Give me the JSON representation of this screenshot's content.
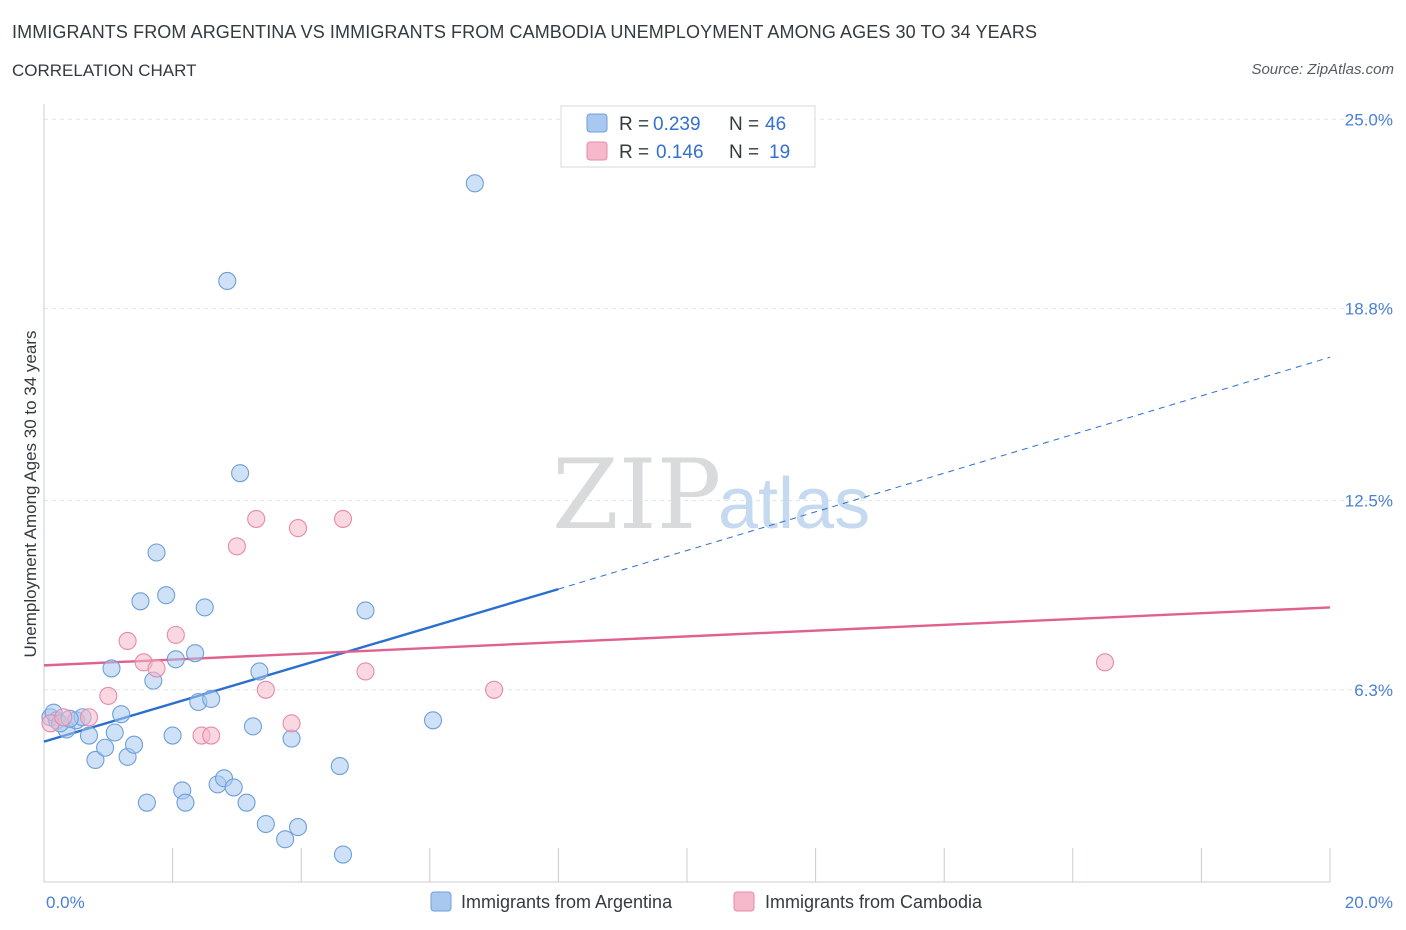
{
  "header": {
    "title": "IMMIGRANTS FROM ARGENTINA VS IMMIGRANTS FROM CAMBODIA UNEMPLOYMENT AMONG AGES 30 TO 34 YEARS",
    "subtitle": "CORRELATION CHART",
    "source": "Source: ZipAtlas.com"
  },
  "watermark": {
    "zip": "ZIP",
    "atlas": "atlas"
  },
  "legend": {
    "rows": [
      {
        "r_label": "R =",
        "r_value": "0.239",
        "n_label": "N =",
        "n_value": "46",
        "color": "#a8c8f0"
      },
      {
        "r_label": "R =",
        "r_value": "0.146",
        "n_label": "N =",
        "n_value": "19",
        "color": "#f6b8cb"
      }
    ]
  },
  "bottom_legend": [
    {
      "label": "Immigrants from Argentina",
      "color": "#a8c8f0"
    },
    {
      "label": "Immigrants from Cambodia",
      "color": "#f6b8cb"
    }
  ],
  "chart_data": {
    "type": "scatter",
    "title": "IMMIGRANTS FROM ARGENTINA VS IMMIGRANTS FROM CAMBODIA UNEMPLOYMENT AMONG AGES 30 TO 34 YEARS",
    "xlabel": "",
    "ylabel": "Unemployment Among Ages 30 to 34 years",
    "xlim": [
      0,
      20
    ],
    "ylim": [
      0,
      25.5
    ],
    "x_tick_labels": [
      {
        "value": 0,
        "label": "0.0%"
      },
      {
        "value": 20,
        "label": "20.0%"
      }
    ],
    "x_minor_ticks": [
      0,
      2,
      4,
      6,
      8,
      10,
      12,
      14,
      16,
      18,
      20
    ],
    "y_tick_labels": [
      {
        "value": 6.3,
        "label": "6.3%"
      },
      {
        "value": 12.5,
        "label": "12.5%"
      },
      {
        "value": 18.8,
        "label": "18.8%"
      },
      {
        "value": 25.0,
        "label": "25.0%"
      }
    ],
    "grid": true,
    "series": [
      {
        "name": "Immigrants from Argentina",
        "color": "#a8c8f0",
        "stroke": "#6f9fd8",
        "trend": {
          "x0": 0,
          "y0": 4.6,
          "x1": 8,
          "y1": 9.6,
          "dashed_to_x": 20,
          "dashed_to_y": 17.2,
          "color": "#2a6fd0"
        },
        "points": [
          [
            0.1,
            5.4
          ],
          [
            0.2,
            5.3
          ],
          [
            0.35,
            5.0
          ],
          [
            0.5,
            5.3
          ],
          [
            0.6,
            5.4
          ],
          [
            0.7,
            4.8
          ],
          [
            0.8,
            4.0
          ],
          [
            0.95,
            4.4
          ],
          [
            1.05,
            7.0
          ],
          [
            1.1,
            4.9
          ],
          [
            1.2,
            5.5
          ],
          [
            1.3,
            4.1
          ],
          [
            1.4,
            4.5
          ],
          [
            1.5,
            9.2
          ],
          [
            1.6,
            2.6
          ],
          [
            1.7,
            6.6
          ],
          [
            1.75,
            10.8
          ],
          [
            1.9,
            9.4
          ],
          [
            2.0,
            4.8
          ],
          [
            2.05,
            7.3
          ],
          [
            2.15,
            3.0
          ],
          [
            2.2,
            2.6
          ],
          [
            2.35,
            7.5
          ],
          [
            2.4,
            5.9
          ],
          [
            2.5,
            9.0
          ],
          [
            2.6,
            6.0
          ],
          [
            2.7,
            3.2
          ],
          [
            2.8,
            3.4
          ],
          [
            2.85,
            19.7
          ],
          [
            2.95,
            3.1
          ],
          [
            3.05,
            13.4
          ],
          [
            3.15,
            2.6
          ],
          [
            3.25,
            5.1
          ],
          [
            3.35,
            6.9
          ],
          [
            3.45,
            1.9
          ],
          [
            3.75,
            1.4
          ],
          [
            3.85,
            4.7
          ],
          [
            3.95,
            1.8
          ],
          [
            4.6,
            3.8
          ],
          [
            4.65,
            0.9
          ],
          [
            5.0,
            8.9
          ],
          [
            6.05,
            5.3
          ],
          [
            6.7,
            22.9
          ],
          [
            0.15,
            5.55
          ],
          [
            0.25,
            5.2
          ],
          [
            0.4,
            5.35
          ]
        ]
      },
      {
        "name": "Immigrants from Cambodia",
        "color": "#f6b8cb",
        "stroke": "#e88aa8",
        "trend": {
          "x0": 0,
          "y0": 7.1,
          "x1": 20,
          "y1": 9.0,
          "color": "#e06090"
        },
        "points": [
          [
            0.1,
            5.2
          ],
          [
            0.3,
            5.4
          ],
          [
            0.7,
            5.4
          ],
          [
            1.0,
            6.1
          ],
          [
            1.3,
            7.9
          ],
          [
            1.55,
            7.2
          ],
          [
            1.75,
            7.0
          ],
          [
            2.05,
            8.1
          ],
          [
            2.45,
            4.8
          ],
          [
            2.6,
            4.8
          ],
          [
            3.0,
            11.0
          ],
          [
            3.3,
            11.9
          ],
          [
            3.45,
            6.3
          ],
          [
            3.85,
            5.2
          ],
          [
            3.95,
            11.6
          ],
          [
            4.65,
            11.9
          ],
          [
            5.0,
            6.9
          ],
          [
            7.0,
            6.3
          ],
          [
            16.5,
            7.2
          ]
        ]
      }
    ]
  }
}
